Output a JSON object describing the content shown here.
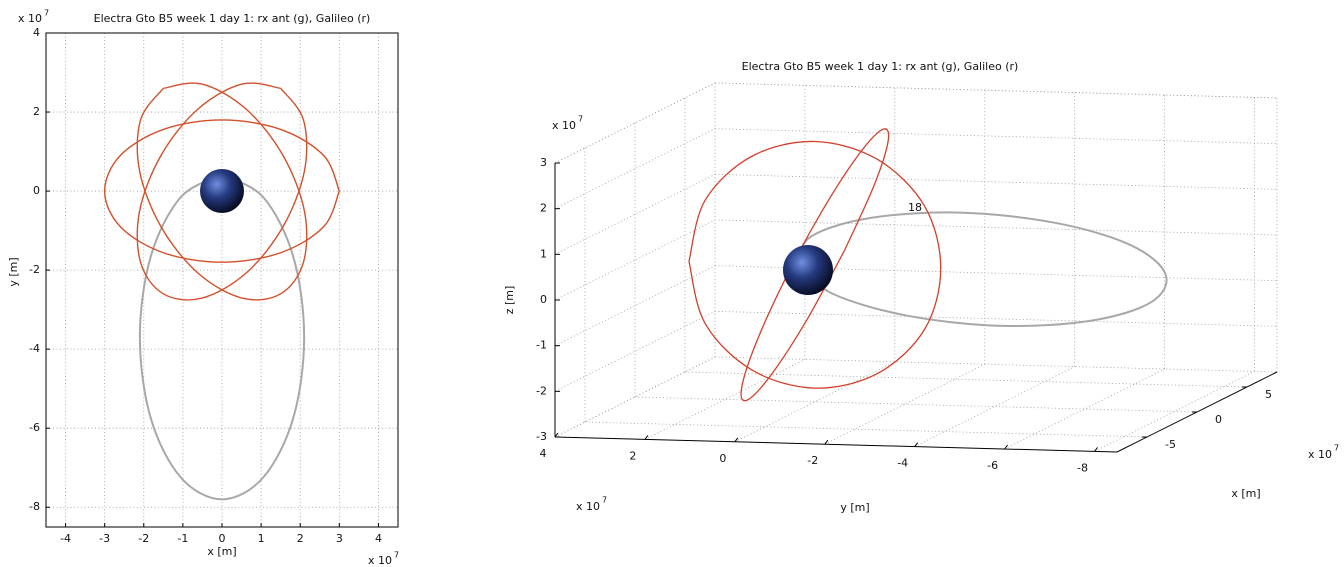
{
  "chart_data": [
    {
      "type": "line",
      "title": "Electra Gto B5 week 1 day 1: rx ant (g), Galileo (r)",
      "x_label": "x [m]",
      "y_label": "y [m]",
      "x_scale": "x 10",
      "x_scale_exp": "7",
      "y_scale": "x 10",
      "y_scale_exp": "7",
      "xlim": [
        -4.5,
        4.5
      ],
      "ylim": [
        -8.5,
        4
      ],
      "xticks": [
        -4,
        -3,
        -2,
        -1,
        0,
        1,
        2,
        3,
        4
      ],
      "yticks": [
        -8,
        -6,
        -4,
        -2,
        0,
        2,
        4
      ],
      "grid": true,
      "series": [
        {
          "color": "#a8a8a8",
          "x": [
            0,
            1.05,
            1.82,
            2.1,
            1.82,
            1.05,
            0,
            -1.05,
            -1.82,
            -2.1,
            -1.82,
            -1.05,
            0
          ],
          "values": [
            0.4,
            -0.15,
            -1.65,
            -3.7,
            -5.75,
            -7.25,
            -7.8,
            -7.25,
            -5.75,
            -3.7,
            -1.65,
            -0.15,
            0.4
          ]
        },
        {
          "color": "#d2502a",
          "x": [
            3,
            2.6,
            1.5,
            0,
            -1.5,
            -2.6,
            -3,
            -2.6,
            -1.5,
            0,
            1.5,
            2.6,
            3
          ],
          "values": [
            0,
            0.9,
            1.56,
            1.8,
            1.56,
            0.9,
            0,
            -0.9,
            -1.56,
            -1.8,
            -1.56,
            -0.9,
            0
          ]
        },
        {
          "color": "#d2502a",
          "x": [
            1.5,
            0.52,
            -0.61,
            -1.56,
            -2.11,
            -2.08,
            -1.5,
            -0.52,
            0.61,
            1.56,
            2.11,
            2.08,
            1.5
          ],
          "values": [
            2.6,
            2.71,
            2.08,
            0.9,
            -0.52,
            -1.81,
            -2.6,
            -2.71,
            -2.08,
            -0.9,
            0.52,
            1.81,
            2.6
          ]
        },
        {
          "color": "#d2502a",
          "x": [
            -1.5,
            -0.52,
            0.61,
            1.56,
            2.11,
            2.08,
            1.5,
            0.52,
            -0.61,
            -1.56,
            -2.11,
            -2.08,
            -1.5
          ],
          "values": [
            2.6,
            2.71,
            2.08,
            0.9,
            -0.52,
            -1.81,
            -2.6,
            -2.71,
            -2.08,
            -0.9,
            0.52,
            1.81,
            2.6
          ]
        }
      ]
    },
    {
      "type": "line3d",
      "title": "Electra Gto B5 week 1 day 1: rx ant (g), Galileo (r)",
      "x_label": "x [m]",
      "y_label": "y [m]",
      "z_label": "z [m]",
      "x_scale": "x 10",
      "x_scale_exp": "7",
      "y_scale": "x 10",
      "y_scale_exp": "7",
      "z_scale": "x 10",
      "z_scale_exp": "7",
      "annotation": "18",
      "xlim": [
        -8,
        8
      ],
      "ylim": [
        -8.5,
        4
      ],
      "zlim": [
        -3,
        3
      ],
      "xticks": [
        -5,
        0,
        5
      ],
      "yticks": [
        -8,
        -6,
        -4,
        -2,
        0,
        2,
        4
      ],
      "zticks": [
        -3,
        -2,
        -1,
        0,
        1,
        2,
        3
      ],
      "grid": true,
      "series": [
        {
          "color": "#a8a8a8",
          "x": [
            0,
            1.05,
            1.82,
            2.1,
            1.82,
            1.05,
            0,
            -1.05,
            -1.82,
            -2.1,
            -1.82,
            -1.05,
            0
          ],
          "y": [
            0.4,
            -0.15,
            -1.65,
            -3.7,
            -5.75,
            -7.25,
            -7.8,
            -7.25,
            -5.75,
            -3.7,
            -1.65,
            -0.15,
            0.4
          ],
          "values": [
            0,
            -0.74,
            -1.27,
            -1.47,
            -1.27,
            -0.74,
            0,
            0.74,
            1.27,
            1.47,
            1.27,
            0.74,
            0
          ]
        },
        {
          "color": "#d2402a",
          "x": [
            0,
            0,
            0,
            0,
            0,
            0,
            0,
            0,
            0,
            0,
            0,
            0,
            0
          ],
          "y": [
            2.8,
            2.44,
            1.4,
            0,
            -1.4,
            -2.44,
            -2.8,
            -2.44,
            -1.4,
            0,
            1.4,
            2.44,
            2.8
          ],
          "values": [
            0,
            1.35,
            2.34,
            2.7,
            2.34,
            1.35,
            0,
            -1.35,
            -2.34,
            -2.7,
            -2.34,
            -1.35,
            0
          ]
        },
        {
          "color": "#d2402a",
          "x": [
            3,
            2.6,
            1.5,
            0,
            -1.5,
            -2.6,
            -3,
            -2.6,
            -1.5,
            0,
            1.5,
            2.6,
            3
          ],
          "y": [
            0,
            -0.75,
            -1.3,
            -1.5,
            -1.3,
            -0.75,
            0,
            0.75,
            1.3,
            1.5,
            1.3,
            0.75,
            0
          ],
          "values": [
            0,
            1.5,
            2.6,
            3,
            2.6,
            1.5,
            0,
            -1.5,
            -2.6,
            -3,
            -2.6,
            -1.5,
            0
          ]
        }
      ]
    }
  ]
}
